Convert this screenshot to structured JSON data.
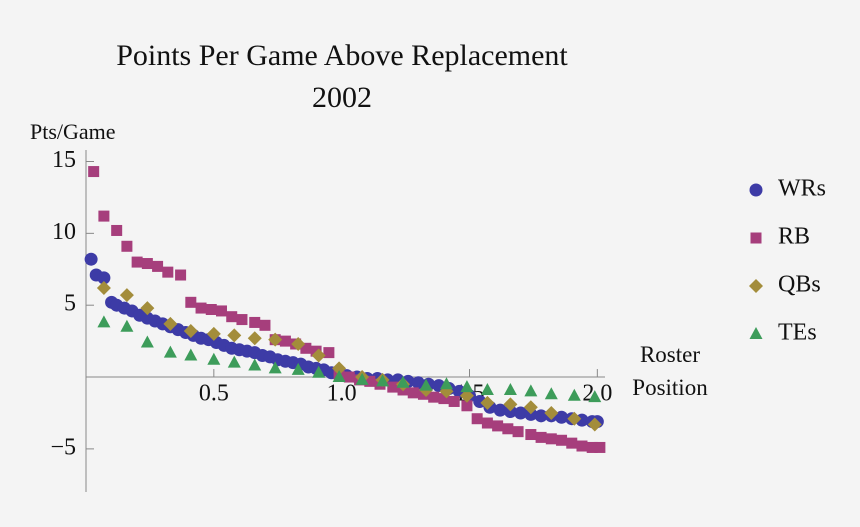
{
  "chart_data": {
    "type": "scatter",
    "title": "Points Per Game Above Replacement",
    "subtitle": "2002",
    "y_label": "Pts/Game",
    "x_label": "Roster Position",
    "xlim": [
      0,
      2.03
    ],
    "ylim": [
      -8,
      15.8
    ],
    "xticks": [
      0.5,
      {
        "value": 1.0,
        "label": "1.0"
      },
      1.5,
      {
        "value": 2.0,
        "label": "2.0"
      }
    ],
    "yticks": [
      {
        "value": -5,
        "label": "−5"
      },
      5,
      10,
      15
    ],
    "series": [
      {
        "name": "WRs",
        "color": "#3d3ba6",
        "marker": "circle",
        "x": [
          0.02,
          0.04,
          0.07,
          0.1,
          0.12,
          0.15,
          0.18,
          0.21,
          0.24,
          0.27,
          0.3,
          0.33,
          0.36,
          0.39,
          0.42,
          0.45,
          0.48,
          0.51,
          0.54,
          0.57,
          0.6,
          0.63,
          0.66,
          0.69,
          0.72,
          0.75,
          0.78,
          0.81,
          0.84,
          0.87,
          0.9,
          0.93,
          0.96,
          0.99,
          1.02,
          1.06,
          1.1,
          1.14,
          1.18,
          1.22,
          1.26,
          1.3,
          1.34,
          1.38,
          1.42,
          1.46,
          1.5,
          1.54,
          1.58,
          1.62,
          1.66,
          1.7,
          1.74,
          1.78,
          1.82,
          1.86,
          1.9,
          1.94,
          1.98,
          2.0
        ],
        "values": [
          8.2,
          7.1,
          6.9,
          5.2,
          5.0,
          4.8,
          4.6,
          4.3,
          4.1,
          3.9,
          3.7,
          3.5,
          3.3,
          3.1,
          2.9,
          2.7,
          2.6,
          2.4,
          2.2,
          2.0,
          1.9,
          1.8,
          1.7,
          1.5,
          1.4,
          1.2,
          1.1,
          1.0,
          0.9,
          0.7,
          0.6,
          0.5,
          0.3,
          0.2,
          0.1,
          0.0,
          -0.1,
          -0.1,
          -0.2,
          -0.2,
          -0.3,
          -0.4,
          -0.5,
          -0.6,
          -0.8,
          -1.0,
          -1.3,
          -1.7,
          -2.1,
          -2.3,
          -2.4,
          -2.5,
          -2.6,
          -2.7,
          -2.7,
          -2.8,
          -2.9,
          -3.0,
          -3.1,
          -3.1
        ]
      },
      {
        "name": "RB",
        "color": "#a63e7c",
        "marker": "square",
        "x": [
          0.03,
          0.07,
          0.12,
          0.16,
          0.2,
          0.24,
          0.28,
          0.32,
          0.37,
          0.41,
          0.45,
          0.49,
          0.53,
          0.57,
          0.61,
          0.66,
          0.7,
          0.74,
          0.78,
          0.82,
          0.86,
          0.9,
          0.95,
          0.99,
          1.03,
          1.07,
          1.11,
          1.15,
          1.2,
          1.24,
          1.28,
          1.32,
          1.36,
          1.4,
          1.44,
          1.49,
          1.53,
          1.57,
          1.61,
          1.65,
          1.69,
          1.74,
          1.78,
          1.82,
          1.86,
          1.9,
          1.94,
          1.98,
          2.01
        ],
        "values": [
          14.3,
          11.2,
          10.2,
          9.1,
          8.0,
          7.9,
          7.7,
          7.3,
          7.1,
          5.2,
          4.8,
          4.7,
          4.6,
          4.2,
          4.0,
          3.8,
          3.6,
          2.6,
          2.5,
          2.3,
          2.0,
          1.8,
          1.7,
          0.2,
          0.0,
          -0.2,
          -0.3,
          -0.5,
          -0.7,
          -0.9,
          -1.1,
          -1.2,
          -1.4,
          -1.5,
          -1.7,
          -2.0,
          -2.9,
          -3.2,
          -3.4,
          -3.6,
          -3.8,
          -4.0,
          -4.2,
          -4.3,
          -4.4,
          -4.6,
          -4.8,
          -4.9,
          -4.9
        ]
      },
      {
        "name": "QBs",
        "color": "#a38d3b",
        "marker": "diamond",
        "x": [
          0.07,
          0.16,
          0.24,
          0.33,
          0.41,
          0.5,
          0.58,
          0.66,
          0.74,
          0.83,
          0.91,
          0.99,
          1.08,
          1.16,
          1.24,
          1.33,
          1.41,
          1.49,
          1.57,
          1.66,
          1.74,
          1.82,
          1.91,
          1.99
        ],
        "values": [
          6.2,
          5.7,
          4.8,
          3.7,
          3.2,
          3.0,
          2.9,
          2.7,
          2.6,
          2.3,
          1.5,
          0.6,
          0.0,
          -0.2,
          -0.5,
          -0.9,
          -1.0,
          -1.3,
          -1.8,
          -1.9,
          -2.1,
          -2.5,
          -2.9,
          -3.3
        ]
      },
      {
        "name": "TEs",
        "color": "#3d9c5a",
        "marker": "triangle",
        "x": [
          0.07,
          0.16,
          0.24,
          0.33,
          0.41,
          0.5,
          0.58,
          0.66,
          0.74,
          0.83,
          0.91,
          0.99,
          1.08,
          1.16,
          1.24,
          1.33,
          1.41,
          1.49,
          1.57,
          1.66,
          1.74,
          1.82,
          1.91,
          1.99
        ],
        "values": [
          3.8,
          3.5,
          2.4,
          1.7,
          1.5,
          1.2,
          1.0,
          0.8,
          0.6,
          0.5,
          0.3,
          0.0,
          -0.2,
          -0.3,
          -0.4,
          -0.6,
          -0.5,
          -0.7,
          -0.9,
          -0.9,
          -1.0,
          -1.2,
          -1.3,
          -1.4
        ]
      }
    ]
  }
}
